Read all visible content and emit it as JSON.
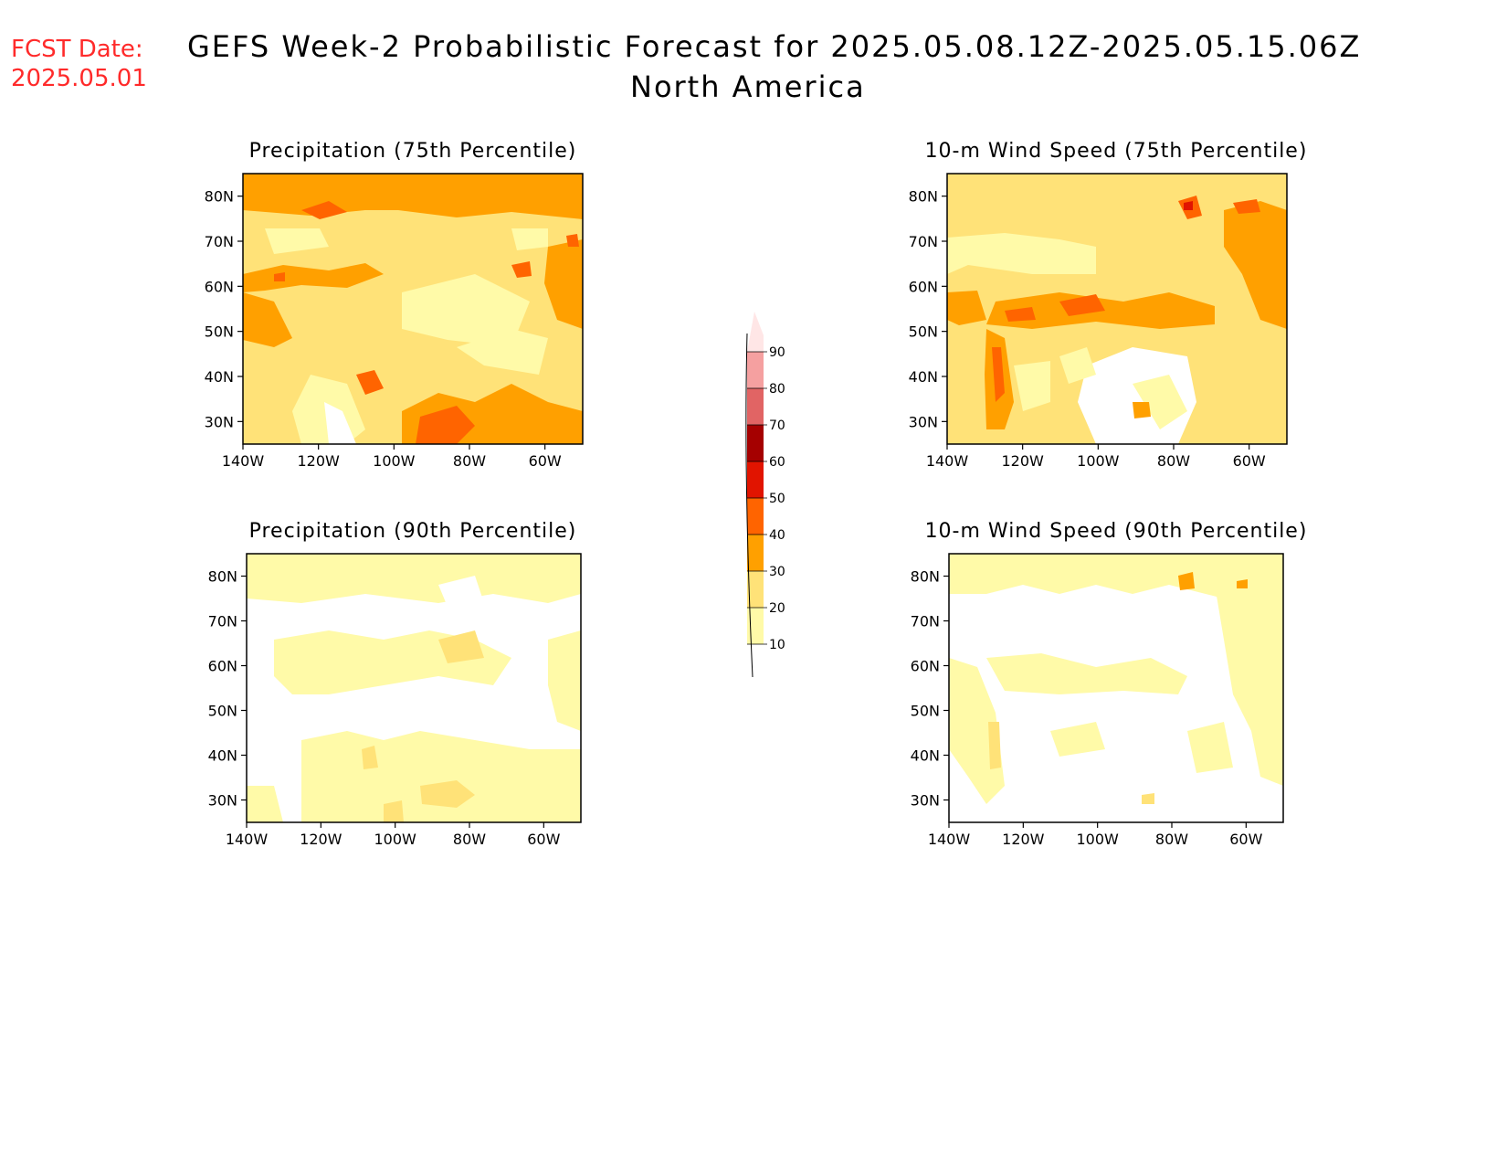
{
  "header": {
    "fcst_label": "FCST Date:",
    "fcst_date": "2025.05.01",
    "title": "GEFS Week-2 Probabilistic Forecast for 2025.05.08.12Z-2025.05.15.06Z",
    "subtitle": "North America"
  },
  "panels": [
    {
      "title": "Precipitation (75th Percentile)",
      "variable": "precipitation",
      "percentile": 75
    },
    {
      "title": "10-m Wind Speed (75th Percentile)",
      "variable": "wind",
      "percentile": 75
    },
    {
      "title": "Precipitation (90th Percentile)",
      "variable": "precipitation",
      "percentile": 90
    },
    {
      "title": "10-m Wind Speed (90th Percentile)",
      "variable": "wind",
      "percentile": 90
    }
  ],
  "axes": {
    "lon_labels": [
      "140W",
      "120W",
      "100W",
      "80W",
      "60W"
    ],
    "lat_labels": [
      "80N",
      "70N",
      "60N",
      "50N",
      "40N",
      "30N"
    ],
    "lon_range": [
      -140,
      -50
    ],
    "lat_range": [
      25,
      85
    ]
  },
  "colorbar": {
    "labels": [
      "10",
      "20",
      "30",
      "40",
      "50",
      "60",
      "70",
      "80",
      "90"
    ],
    "colors": [
      "#fffaa8",
      "#ffe278",
      "#ffa000",
      "#ff6400",
      "#e11400",
      "#a50000",
      "#e16464",
      "#f5a0a0",
      "#ffe6e6"
    ]
  }
}
